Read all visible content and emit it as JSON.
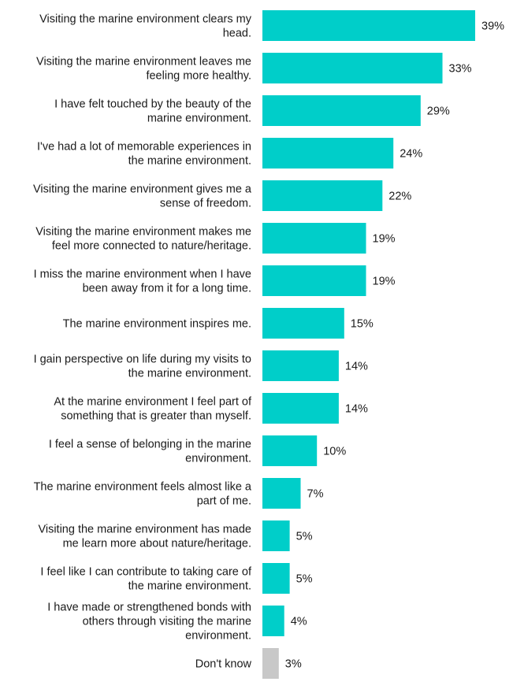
{
  "chart_data": {
    "type": "bar",
    "orientation": "horizontal",
    "title": "",
    "xlabel": "",
    "ylabel": "",
    "xlim": [
      0,
      39
    ],
    "grid": false,
    "legend": "none",
    "value_suffix": "%",
    "colors": {
      "default": "#00CEC9",
      "dont_know": "#C8C8C8"
    },
    "categories": [
      [
        "Visiting the marine environment clears my",
        "head."
      ],
      [
        "Visiting the marine environment leaves me",
        "feeling more healthy."
      ],
      [
        "I have felt touched by the beauty of the",
        "marine environment."
      ],
      [
        "I've had a lot of memorable experiences in",
        "the marine environment."
      ],
      [
        "Visiting the marine environment gives me a",
        "sense of freedom."
      ],
      [
        "Visiting the marine environment makes me",
        "feel more connected to nature/heritage."
      ],
      [
        "I miss the marine environment when I have",
        "been away from it for a long time."
      ],
      [
        "The marine environment inspires me."
      ],
      [
        "I gain perspective on life during my visits to",
        "the marine environment."
      ],
      [
        "At the marine environment I feel part of",
        "something that is greater than myself."
      ],
      [
        "I feel a sense of belonging in the marine",
        "environment."
      ],
      [
        "The marine environment feels almost like a",
        "part of me."
      ],
      [
        "Visiting the marine environment has made",
        "me learn more about nature/heritage."
      ],
      [
        "I feel like I can contribute to taking care of",
        "the marine environment."
      ],
      [
        "I have made or strengthened bonds with",
        "others through visiting the marine",
        "environment."
      ],
      [
        "Don't know"
      ]
    ],
    "values": [
      39,
      33,
      29,
      24,
      22,
      19,
      19,
      15,
      14,
      14,
      10,
      7,
      5,
      5,
      4,
      3
    ],
    "value_labels": [
      "39%",
      "33%",
      "29%",
      "24%",
      "22%",
      "19%",
      "19%",
      "15%",
      "14%",
      "14%",
      "10%",
      "7%",
      "5%",
      "5%",
      "4%",
      "3%"
    ]
  }
}
